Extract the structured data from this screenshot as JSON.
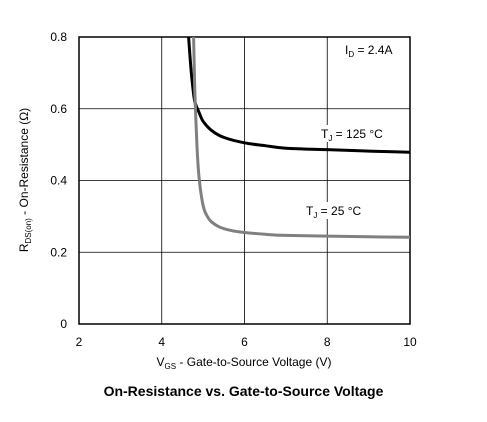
{
  "caption": "On-Resistance vs. Gate-to-Source Voltage",
  "chart_data": {
    "type": "line",
    "title": "On-Resistance vs. Gate-to-Source Voltage",
    "xlabel": {
      "main": "V",
      "sub": "GS",
      "rest": " - Gate-to-Source Voltage (V)"
    },
    "ylabel": {
      "main": "R",
      "sub": "DS(on)",
      "rest": " - On-Resistance (Ω)"
    },
    "xlim": [
      2,
      10
    ],
    "ylim": [
      0,
      0.8
    ],
    "xticks": [
      "2",
      "4",
      "6",
      "8",
      "10"
    ],
    "yticks": [
      "0",
      "0.2",
      "0.4",
      "0.6",
      "0.8"
    ],
    "grid": true,
    "annotations": [
      {
        "main": "I",
        "sub": "D",
        "rest": " = 2.4A"
      },
      {
        "main": "T",
        "sub": "J",
        "rest": " = 125 °C"
      },
      {
        "main": "T",
        "sub": "J",
        "rest": " = 25 °C"
      }
    ],
    "colors": {
      "t125": "#000000",
      "t25": "#808080",
      "grid": "#000000"
    },
    "series": [
      {
        "x": [
          4.65,
          4.7,
          4.75,
          4.8,
          4.9,
          5.0,
          5.2,
          5.5,
          6.0,
          6.5,
          7.0,
          8.0,
          9.0,
          10.0
        ],
        "values": [
          0.8,
          0.72,
          0.66,
          0.62,
          0.59,
          0.565,
          0.54,
          0.52,
          0.505,
          0.497,
          0.49,
          0.486,
          0.482,
          0.479
        ]
      },
      {
        "x": [
          4.77,
          4.8,
          4.85,
          4.9,
          5.0,
          5.1,
          5.2,
          5.4,
          5.7,
          6.0,
          6.5,
          7.0,
          8.0,
          9.0,
          10.0
        ],
        "values": [
          0.8,
          0.65,
          0.5,
          0.41,
          0.33,
          0.3,
          0.285,
          0.27,
          0.26,
          0.255,
          0.25,
          0.247,
          0.245,
          0.243,
          0.242
        ]
      }
    ]
  }
}
